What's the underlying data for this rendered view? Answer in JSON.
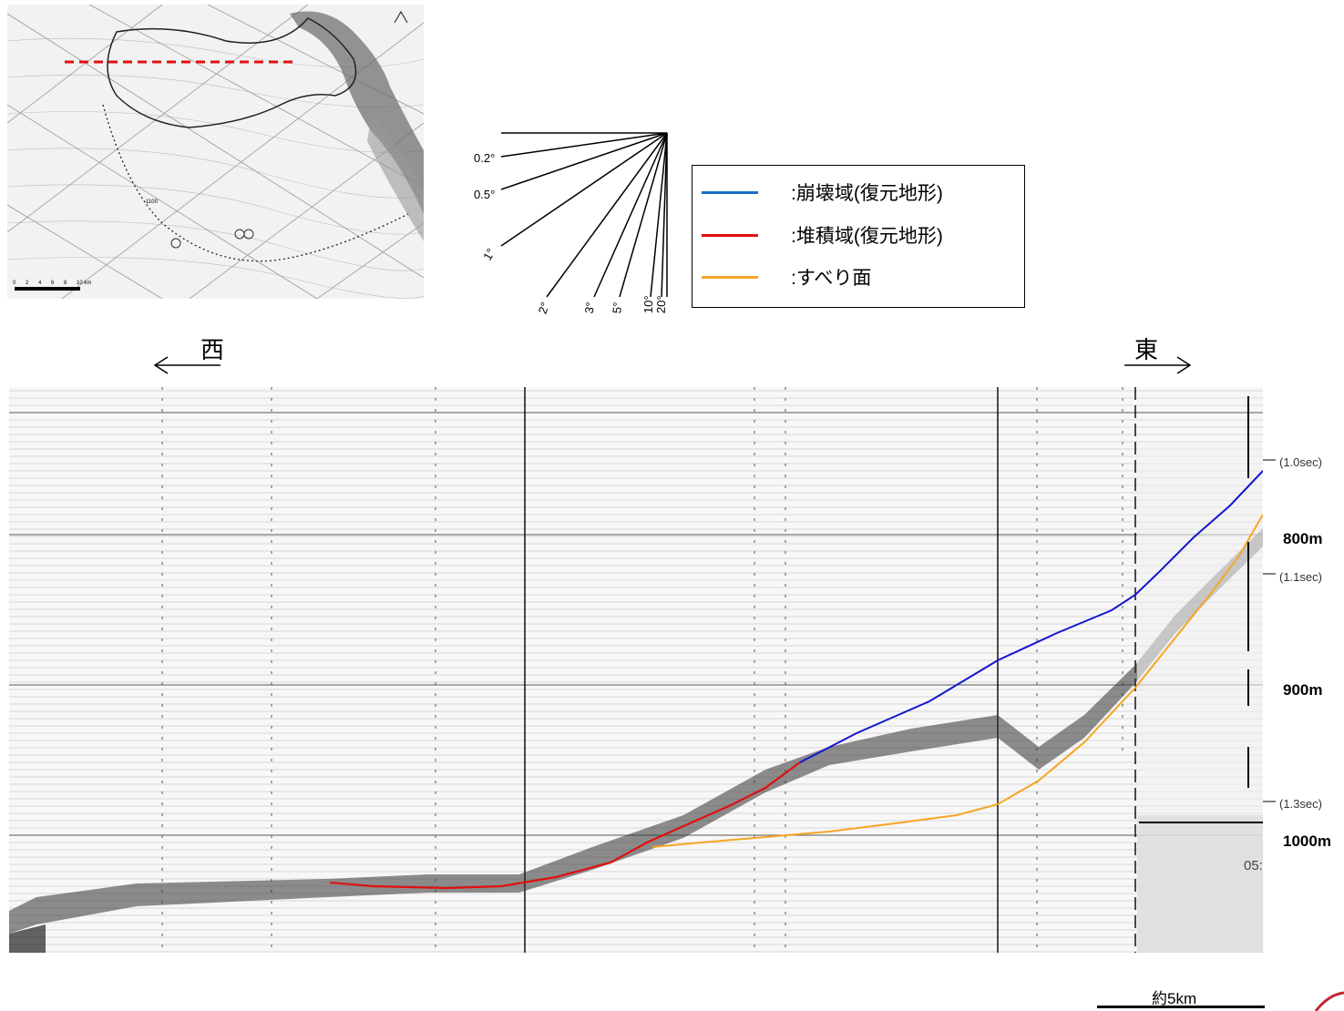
{
  "slope_angles": [
    "0.2°",
    "0.5°",
    "1°",
    "2°",
    "3°",
    "5°",
    "10°",
    "20°"
  ],
  "legend": {
    "items": [
      {
        "label": ":崩壊域(復元地形)",
        "color": "#1a6fc9"
      },
      {
        "label": ":堆積域(復元地形)",
        "color": "#e01010"
      },
      {
        "label": ":すべり面",
        "color": "#f5a623"
      }
    ]
  },
  "directions": {
    "west": "西",
    "east": "東"
  },
  "depths": [
    "800m",
    "900m",
    "1000m"
  ],
  "time_marks": [
    "(1.0sec)",
    "(1.1sec)",
    "(1.3sec)"
  ],
  "record_label": "05:",
  "map_scale": {
    "labels": [
      "0",
      "2",
      "4",
      "6",
      "8",
      "10 km"
    ],
    "contour": "-1100"
  },
  "scale_bar": {
    "label": "約5km"
  },
  "colors": {
    "collapse": "#1515d0",
    "deposit": "#e01010",
    "slip": "#f5a623",
    "track": "#e01010"
  }
}
